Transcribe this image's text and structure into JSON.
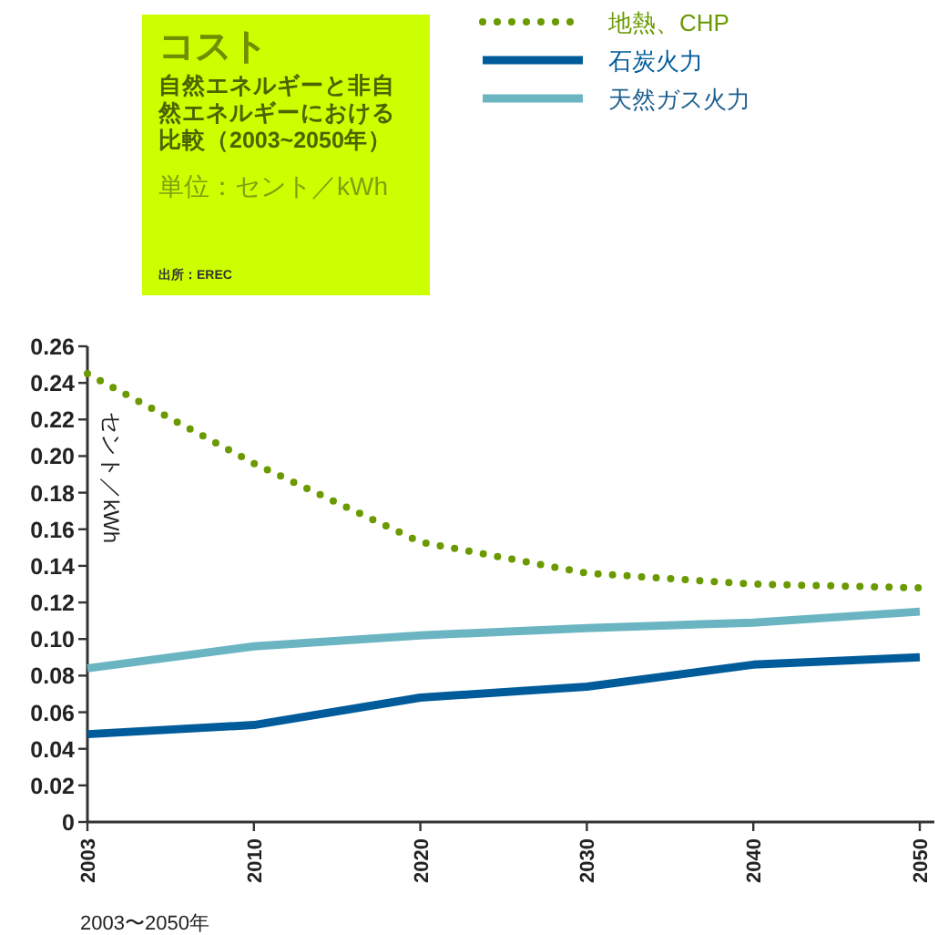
{
  "chart_data": {
    "type": "line",
    "title": "コスト",
    "subtitle": "自然エネルギーと非自然エネルギーにおける比較（2003~2050年）",
    "annotations": [
      "単位：セント／kWh",
      "出所：EREC"
    ],
    "xlabel": "2003〜2050年",
    "ylabel": "セント／kWh",
    "categories": [
      "2003",
      "2010",
      "2020",
      "2030",
      "2040",
      "2050"
    ],
    "ylim": [
      0,
      0.26
    ],
    "yticks": [
      0,
      0.02,
      0.04,
      0.06,
      0.08,
      {
        "value": 0.1,
        "label": "0.10"
      },
      0.12,
      0.14,
      0.16,
      0.18,
      {
        "value": 0.2,
        "label": "0.20"
      },
      0.22,
      0.24,
      0.26
    ],
    "legend": "top",
    "grid": false,
    "marker": "none",
    "series": [
      {
        "name": "地熱、CHP",
        "color": "#6a9a00",
        "line_style": "dotted",
        "values": [
          0.245,
          0.196,
          0.153,
          0.136,
          0.13,
          0.128
        ]
      },
      {
        "name": "石炭火力",
        "color": "#005b9a",
        "line_style": "solid",
        "values": [
          0.048,
          0.053,
          0.068,
          0.074,
          0.086,
          0.09
        ]
      },
      {
        "name": "天然ガス火力",
        "color": "#6bb5c2",
        "line_style": "solid",
        "values": [
          0.084,
          0.096,
          0.102,
          0.106,
          0.109,
          0.115
        ]
      }
    ]
  }
}
